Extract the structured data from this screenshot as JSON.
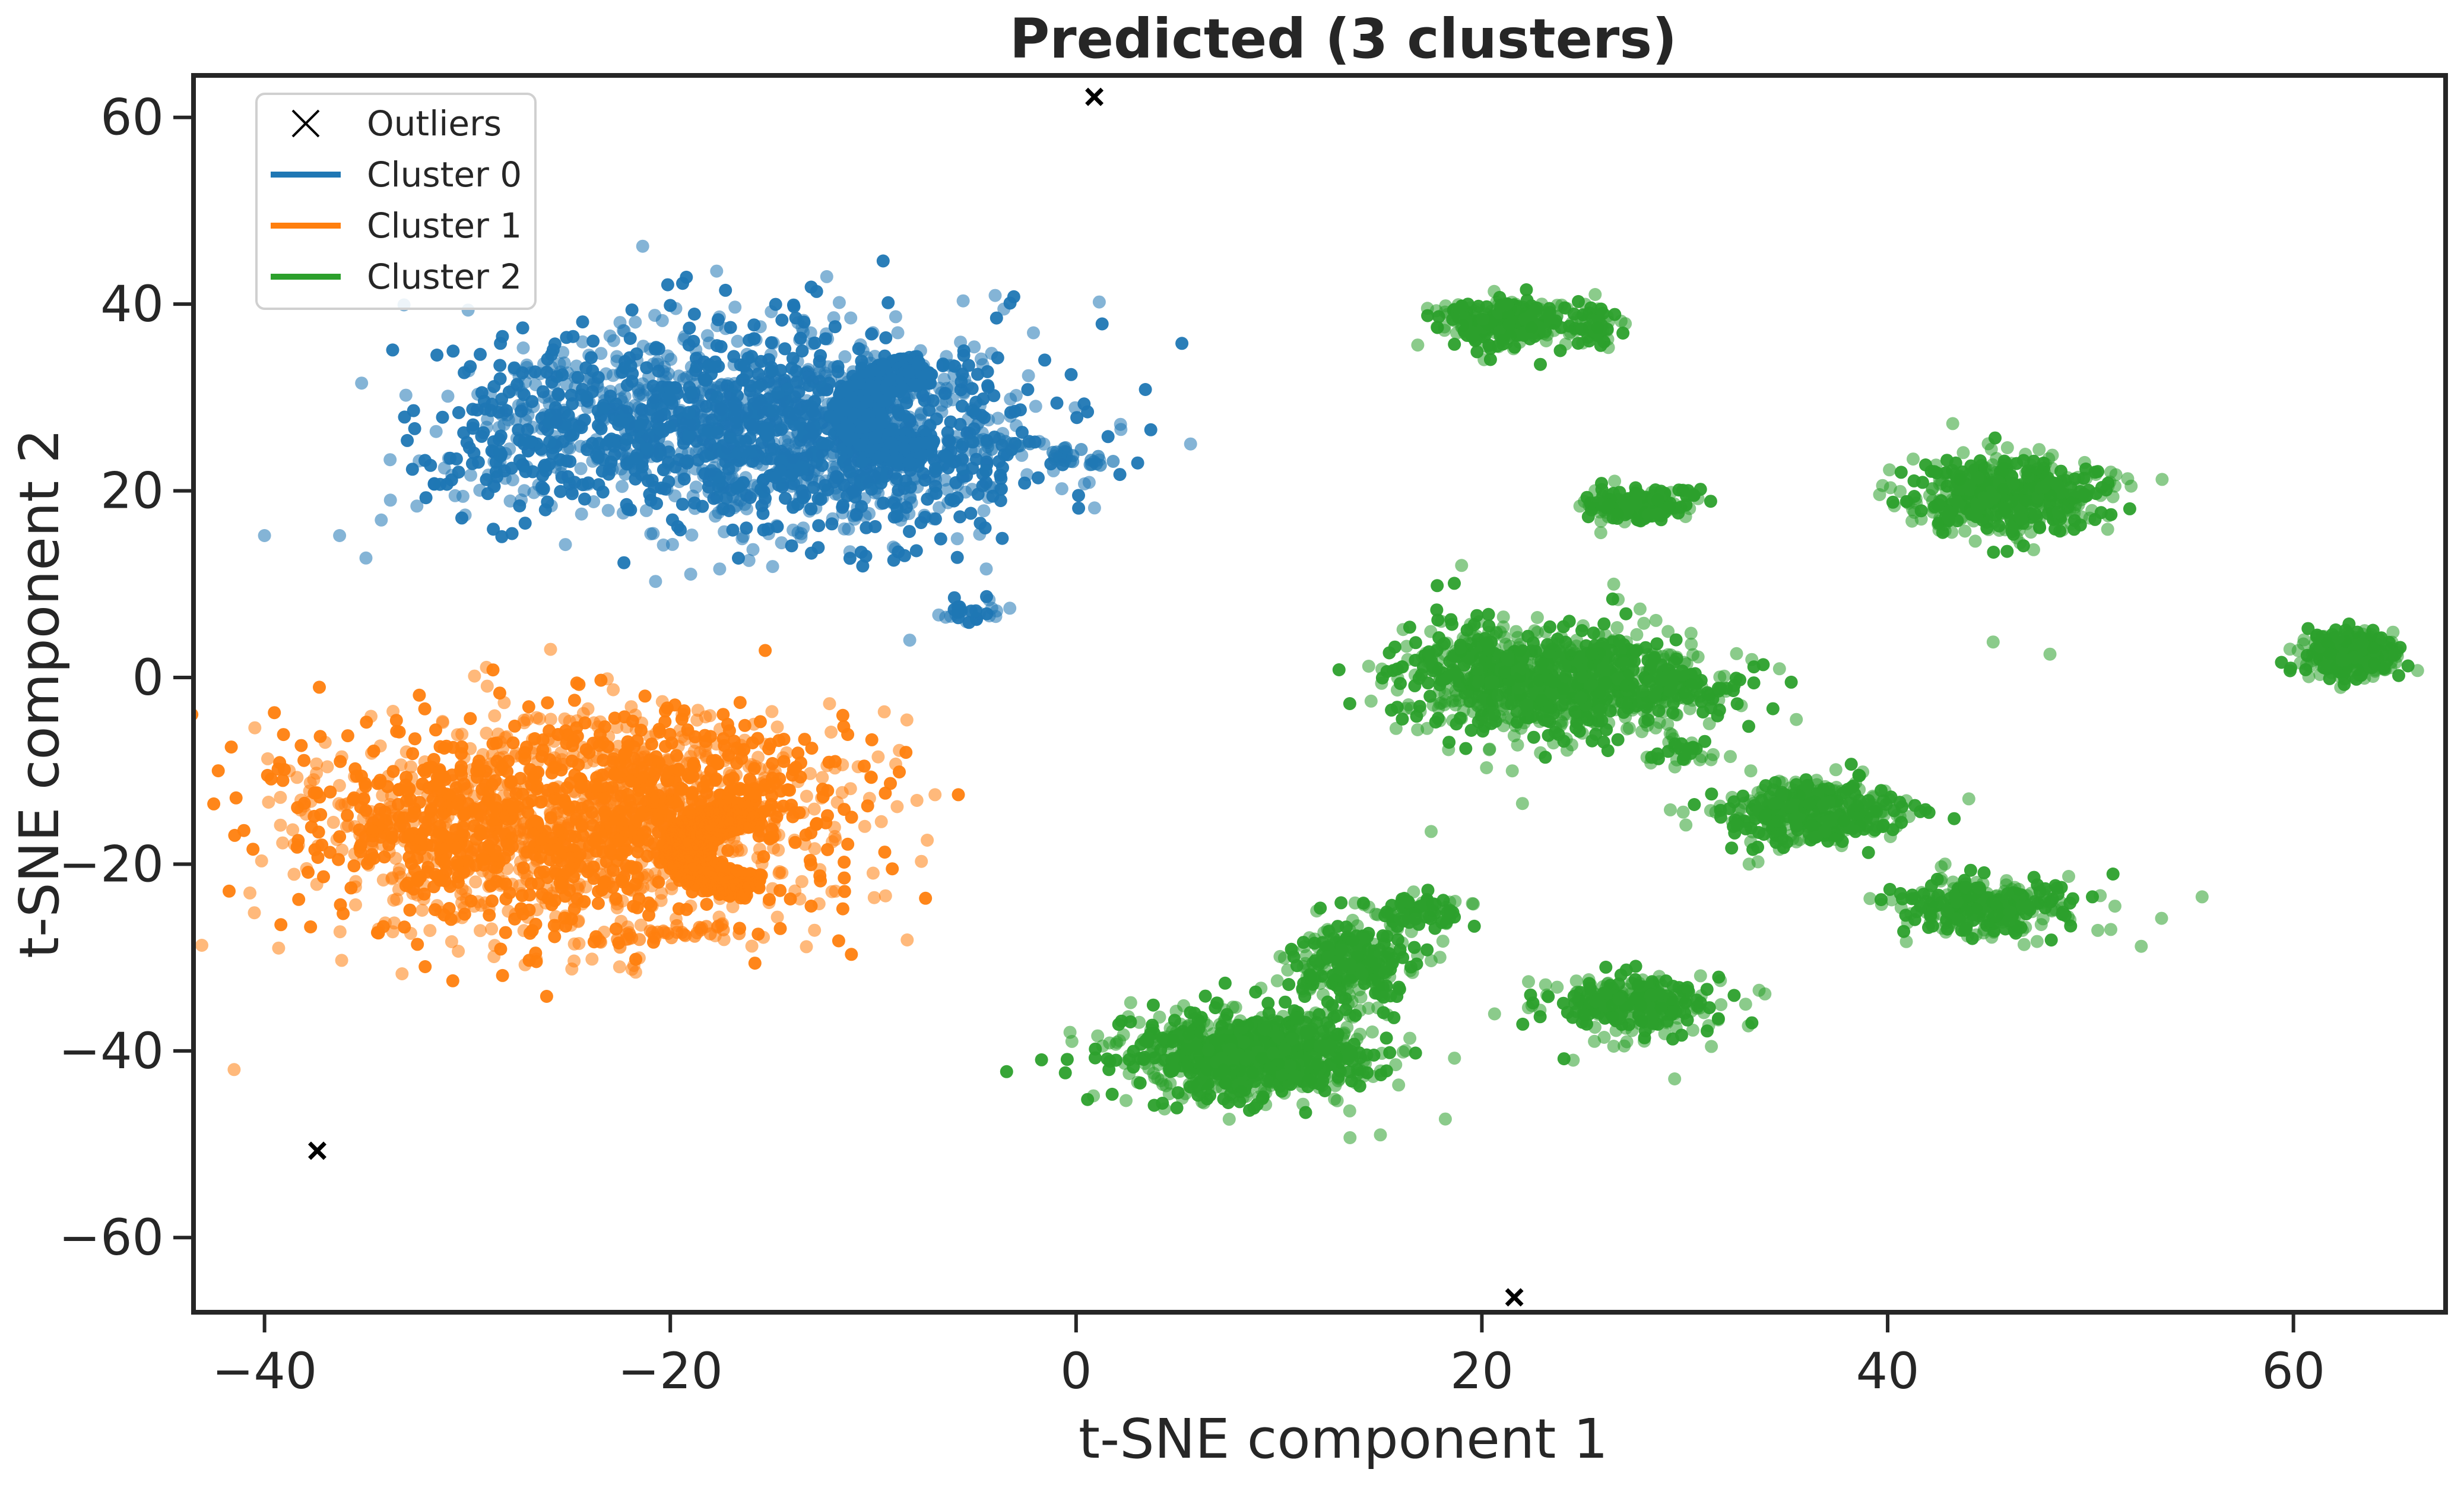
{
  "chart_data": {
    "type": "scatter",
    "title": "Predicted (3 clusters)",
    "xlabel": "t-SNE component 1",
    "ylabel": "t-SNE component 2",
    "xlim": [
      -43.5,
      67.5
    ],
    "ylim": [
      -68,
      64.5
    ],
    "xticks": [
      -40,
      -20,
      0,
      20,
      40,
      60
    ],
    "yticks": [
      -60,
      -40,
      -20,
      0,
      20,
      40,
      60
    ],
    "xtick_labels": [
      "−40",
      "−20",
      "0",
      "20",
      "40",
      "60"
    ],
    "ytick_labels": [
      "−60",
      "−40",
      "−20",
      "0",
      "20",
      "40",
      "60"
    ],
    "grid": false,
    "legend_position": "top-left",
    "legend": [
      {
        "label": "Outliers",
        "marker": "x",
        "color": "#000000"
      },
      {
        "label": "Cluster 0",
        "marker": "line",
        "color": "#1f77b4"
      },
      {
        "label": "Cluster 1",
        "marker": "line",
        "color": "#ff7f0e"
      },
      {
        "label": "Cluster 2",
        "marker": "line",
        "color": "#2ca02c"
      }
    ],
    "outliers": [
      {
        "x": 0.9,
        "y": 62.2
      },
      {
        "x": -37.4,
        "y": -50.7
      },
      {
        "x": 21.6,
        "y": -66.4
      }
    ],
    "clusters": [
      {
        "name": "Cluster 0",
        "color": "#1f77b4",
        "groups": [
          {
            "cx": -15,
            "cy": 27,
            "sx": 6.5,
            "sy": 5.5,
            "n": 1500
          },
          {
            "cx": -26,
            "cy": 27,
            "sx": 3.5,
            "sy": 4.5,
            "n": 180
          },
          {
            "cx": -9,
            "cy": 22,
            "sx": 4,
            "sy": 4,
            "n": 150
          },
          {
            "cx": -28.5,
            "cy": 28,
            "sx": 0.6,
            "sy": 0.8,
            "n": 15
          },
          {
            "cx": -29,
            "cy": 22,
            "sx": 0.7,
            "sy": 0.7,
            "n": 14
          },
          {
            "cx": -27,
            "cy": 33,
            "sx": 0.7,
            "sy": 0.5,
            "n": 8
          },
          {
            "cx": -5.5,
            "cy": 7,
            "sx": 0.8,
            "sy": 0.8,
            "n": 28
          }
        ],
        "arc": {
          "cx": -7,
          "cy": 28.5,
          "rx": 4.5,
          "ry": 5.5,
          "n": 260
        },
        "tail": [
          [
            -4,
            25
          ],
          [
            -1,
            24
          ],
          [
            0.5,
            23.2
          ]
        ],
        "points": [
          [
            -40,
            15.2
          ],
          [
            -36.3,
            15.2
          ],
          [
            -35,
            12.8
          ],
          [
            -8.2,
            4
          ],
          [
            -12,
            17
          ],
          [
            -10.5,
            35
          ]
        ]
      },
      {
        "name": "Cluster 1",
        "color": "#ff7f0e",
        "groups": [
          {
            "cx": -25,
            "cy": -16,
            "sx": 6.5,
            "sy": 6.2,
            "n": 1400
          },
          {
            "cx": -20,
            "cy": -12,
            "sx": 4.5,
            "sy": 4,
            "n": 350
          },
          {
            "cx": -33,
            "cy": -16,
            "sx": 3.5,
            "sy": 4,
            "n": 160
          }
        ],
        "arc": {
          "cx": -15.5,
          "cy": -18.5,
          "rx": 4.5,
          "ry": 4.8,
          "n": 240
        },
        "tail": [
          [
            -18,
            -27
          ],
          [
            -20,
            -27.5
          ],
          [
            -22,
            -28
          ]
        ],
        "points": [
          [
            -41.5,
            -42
          ],
          [
            -40.5,
            -25.2
          ],
          [
            -22.5,
            -31
          ],
          [
            -24.5,
            -28.5
          ],
          [
            -16.5,
            -18.5
          ],
          [
            -17.5,
            -18.5
          ]
        ]
      },
      {
        "name": "Cluster 2",
        "color": "#2ca02c",
        "groups": [
          {
            "cx": 21.3,
            "cy": 38,
            "sx": 1.6,
            "sy": 1.3,
            "n": 260
          },
          {
            "cx": 25.8,
            "cy": 37.5,
            "sx": 0.7,
            "sy": 1.2,
            "n": 45
          },
          {
            "cx": 27.8,
            "cy": 18.5,
            "sx": 1.3,
            "sy": 0.9,
            "n": 180
          },
          {
            "cx": 23.5,
            "cy": -0.5,
            "sx": 3.5,
            "sy": 2.8,
            "n": 900
          },
          {
            "cx": 30,
            "cy": -1,
            "sx": 1.3,
            "sy": 1.6,
            "n": 90
          },
          {
            "cx": 19.5,
            "cy": 3,
            "sx": 1.4,
            "sy": 2,
            "n": 70
          },
          {
            "cx": 30,
            "cy": -8,
            "sx": 0.8,
            "sy": 0.7,
            "n": 30
          },
          {
            "cx": 36.5,
            "cy": -14.5,
            "sx": 2.4,
            "sy": 1.7,
            "n": 380
          },
          {
            "cx": 45,
            "cy": -24.5,
            "sx": 2.2,
            "sy": 1.4,
            "n": 300
          },
          {
            "cx": 46,
            "cy": 19.5,
            "sx": 2.4,
            "sy": 2,
            "n": 500
          },
          {
            "cx": 62.8,
            "cy": 2.3,
            "sx": 1.2,
            "sy": 1.2,
            "n": 320
          },
          {
            "cx": 27.5,
            "cy": -35,
            "sx": 2.2,
            "sy": 1.6,
            "n": 300
          },
          {
            "cx": 8.5,
            "cy": -40.5,
            "sx": 3,
            "sy": 2.4,
            "n": 900
          },
          {
            "cx": 13.5,
            "cy": -30.5,
            "sx": 1.5,
            "sy": 2.5,
            "n": 260
          },
          {
            "cx": 17,
            "cy": -25,
            "sx": 1.2,
            "sy": 0.8,
            "n": 70
          }
        ],
        "arc": null,
        "tail": [],
        "points": [
          [
            19,
            12
          ],
          [
            13.5,
            -49.3
          ],
          [
            15,
            -49
          ],
          [
            18.2,
            -47.3
          ],
          [
            17.5,
            -16.5
          ],
          [
            33,
            -35
          ],
          [
            35.5,
            -4.5
          ],
          [
            44,
            -13
          ],
          [
            45.2,
            3.8
          ],
          [
            48,
            2.5
          ],
          [
            51,
            22
          ],
          [
            50.5,
            19.5
          ],
          [
            52,
            20.5
          ],
          [
            55.5,
            -23.5
          ],
          [
            53.5,
            -25.8
          ],
          [
            52.5,
            -28.8
          ],
          [
            51,
            -27
          ],
          [
            51.2,
            -24.5
          ],
          [
            24.5,
            -41
          ],
          [
            26.5,
            -39.5
          ],
          [
            22,
            -13.5
          ],
          [
            21.5,
            -10
          ],
          [
            26.5,
            10
          ],
          [
            29.5,
            -43
          ]
        ]
      }
    ]
  }
}
